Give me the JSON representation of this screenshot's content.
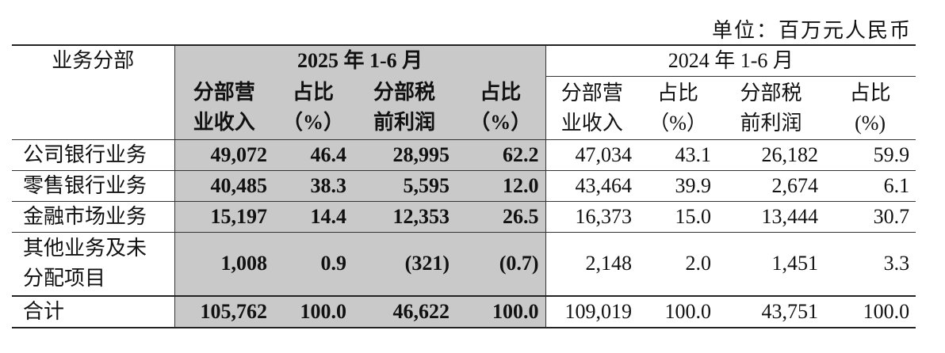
{
  "unit": "单位：百万元人民币",
  "header": {
    "segment": "业务分部",
    "periods": [
      "2025 年 1-6 月",
      "2024 年 1-6 月"
    ],
    "columns": [
      [
        "分部营",
        "业收入"
      ],
      [
        "占比",
        "（%）"
      ],
      [
        "分部税",
        "前利润"
      ],
      [
        "占比",
        "（%）"
      ],
      [
        "分部营",
        "业收入"
      ],
      [
        "占比",
        "（%）"
      ],
      [
        "分部税",
        "前利润"
      ],
      [
        "占比",
        "(%)"
      ]
    ]
  },
  "rows": [
    {
      "label": [
        "公司银行业务"
      ],
      "cells": [
        "49,072",
        "46.4",
        "28,995",
        "62.2",
        "47,034",
        "43.1",
        "26,182",
        "59.9"
      ]
    },
    {
      "label": [
        "零售银行业务"
      ],
      "cells": [
        "40,485",
        "38.3",
        "5,595",
        "12.0",
        "43,464",
        "39.9",
        "2,674",
        "6.1"
      ]
    },
    {
      "label": [
        "金融市场业务"
      ],
      "cells": [
        "15,197",
        "14.4",
        "12,353",
        "26.5",
        "16,373",
        "15.0",
        "13,444",
        "30.7"
      ]
    },
    {
      "label": [
        "其他业务及未",
        "分配项目"
      ],
      "cells": [
        "1,008",
        "0.9",
        "(321)",
        "(0.7)",
        "2,148",
        "2.0",
        "1,451",
        "3.3"
      ]
    },
    {
      "label": [
        "合计"
      ],
      "cells": [
        "105,762",
        "100.0",
        "46,622",
        "100.0",
        "109,019",
        "100.0",
        "43,751",
        "100.0"
      ]
    }
  ]
}
